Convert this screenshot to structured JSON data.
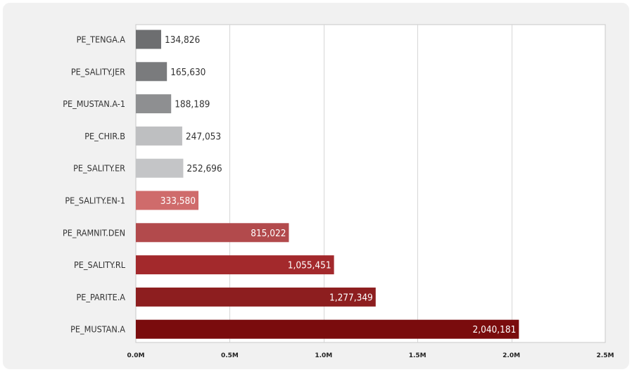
{
  "chart_data": {
    "type": "bar",
    "orientation": "horizontal",
    "title": "",
    "xlabel": "",
    "ylabel": "",
    "categories": [
      "PE_TENGA.A",
      "PE_SALITY.JER",
      "PE_MUSTAN.A-1",
      "PE_CHIR.B",
      "PE_SALITY.ER",
      "PE_SALITY.EN-1",
      "PE_RAMNIT.DEN",
      "PE_SALITY.RL",
      "PE_PARITE.A",
      "PE_MUSTAN.A"
    ],
    "values": [
      134826,
      165630,
      188189,
      247053,
      252696,
      333580,
      815022,
      1055451,
      1277349,
      2040181
    ],
    "value_labels": [
      "134,826",
      "165,630",
      "188,189",
      "247,053",
      "252,696",
      "333,580",
      "815,022",
      "1,055,451",
      "1,277,349",
      "2,040,181"
    ],
    "bar_colors": [
      "#6d6e70",
      "#7a7b7d",
      "#8e8f91",
      "#bebfc1",
      "#c4c5c7",
      "#cf6b6b",
      "#b24a4c",
      "#a3292c",
      "#8d1e1f",
      "#7a0c0d"
    ],
    "xlim": [
      0,
      2500000
    ],
    "xticks": [
      0,
      500000,
      1000000,
      1500000,
      2000000,
      2500000
    ],
    "xtick_labels": [
      "0.0M",
      "0.5M",
      "1.0M",
      "1.5M",
      "2.0M",
      "2.5M"
    ],
    "grid": true,
    "legend": "none"
  }
}
